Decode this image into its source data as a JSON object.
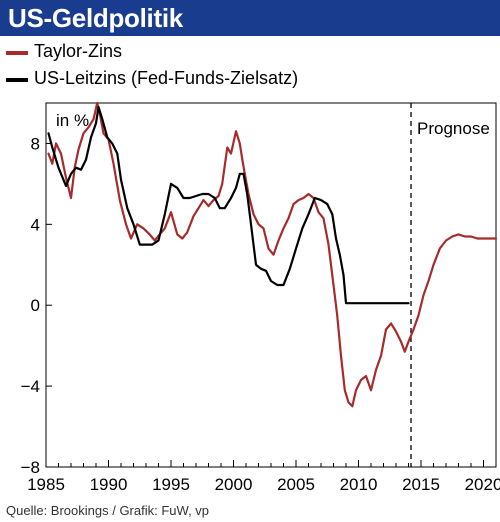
{
  "header": {
    "title": "US-Geldpolitik"
  },
  "legend": {
    "items": [
      {
        "label": "Taylor-Zins",
        "color": "#a82b2b"
      },
      {
        "label": "US-Leitzins (Fed-Funds-Zielsatz)",
        "color": "#000000"
      }
    ]
  },
  "source": "Quelle: Brookings / Grafik: FuW, vp",
  "chart_data": {
    "type": "line",
    "title": "US-Geldpolitik",
    "ylabel": "in %",
    "forecast_label": "Prognose",
    "forecast_start": 2014.2,
    "xlim": [
      1985,
      2021
    ],
    "ylim": [
      -8,
      10
    ],
    "x_ticks": [
      1985,
      1990,
      1995,
      2000,
      2005,
      2010,
      2015,
      2020
    ],
    "y_ticks": [
      8,
      4,
      0,
      -4,
      -8
    ],
    "y_tick_labels": [
      "8",
      "4",
      "0",
      "−4",
      "−8"
    ],
    "grid": false,
    "series": [
      {
        "name": "Taylor-Zins",
        "color": "#a82b2b",
        "x": [
          1985.2,
          1985.5,
          1985.8,
          1986.2,
          1986.6,
          1987.0,
          1987.3,
          1987.6,
          1988.0,
          1988.4,
          1988.8,
          1989.1,
          1989.3,
          1989.6,
          1990.0,
          1990.4,
          1990.9,
          1991.4,
          1991.8,
          1992.3,
          1992.8,
          1993.3,
          1993.7,
          1994.1,
          1994.5,
          1995.0,
          1995.5,
          1995.9,
          1996.3,
          1996.8,
          1997.2,
          1997.6,
          1998.0,
          1998.4,
          1998.8,
          1999.1,
          1999.5,
          1999.8,
          2000.2,
          2000.5,
          2000.7,
          2000.9,
          2001.2,
          2001.6,
          2002.0,
          2002.4,
          2002.8,
          2003.2,
          2003.6,
          2004.0,
          2004.4,
          2004.8,
          2005.2,
          2005.6,
          2006.0,
          2006.4,
          2006.8,
          2007.2,
          2007.6,
          2008.0,
          2008.3,
          2008.6,
          2008.9,
          2009.2,
          2009.5,
          2009.8,
          2010.2,
          2010.6,
          2011.0,
          2011.4,
          2011.8,
          2012.2,
          2012.6,
          2013.0,
          2013.4,
          2013.7,
          2014.0,
          2014.4,
          2014.8,
          2015.2,
          2015.6,
          2016.0,
          2016.5,
          2017.0,
          2017.5,
          2018.0,
          2018.5,
          2019.0,
          2019.5,
          2020.0,
          2020.5,
          2021.0
        ],
        "values": [
          7.5,
          7.0,
          8.0,
          7.5,
          6.3,
          5.3,
          6.8,
          7.7,
          8.5,
          8.8,
          9.2,
          10.0,
          9.5,
          8.5,
          8.2,
          7.0,
          5.2,
          4.0,
          3.3,
          4.0,
          3.8,
          3.5,
          3.2,
          3.5,
          3.8,
          4.6,
          3.5,
          3.3,
          3.6,
          4.4,
          4.8,
          5.2,
          4.9,
          5.2,
          5.4,
          6.0,
          7.8,
          7.5,
          8.6,
          8.0,
          7.2,
          6.5,
          5.5,
          4.5,
          4.0,
          3.8,
          2.8,
          2.5,
          3.2,
          3.8,
          4.3,
          5.0,
          5.2,
          5.3,
          5.5,
          5.3,
          4.6,
          4.3,
          3.0,
          1.0,
          -0.5,
          -2.5,
          -4.2,
          -4.8,
          -5.0,
          -4.2,
          -3.7,
          -3.5,
          -4.2,
          -3.2,
          -2.5,
          -1.2,
          -0.9,
          -1.3,
          -1.8,
          -2.3,
          -1.8,
          -1.2,
          -0.5,
          0.5,
          1.2,
          2.0,
          2.8,
          3.2,
          3.4,
          3.5,
          3.4,
          3.4,
          3.3,
          3.3,
          3.3,
          3.3
        ]
      },
      {
        "name": "US-Leitzins (Fed-Funds-Zielsatz)",
        "color": "#000000",
        "x": [
          1985.2,
          1985.5,
          1986.0,
          1986.6,
          1987.0,
          1987.4,
          1987.8,
          1988.2,
          1988.6,
          1989.0,
          1989.2,
          1989.5,
          1989.9,
          1990.3,
          1990.7,
          1991.0,
          1991.5,
          1992.0,
          1992.5,
          1993.0,
          1993.5,
          1994.0,
          1994.5,
          1995.0,
          1995.5,
          1996.0,
          1996.5,
          1997.0,
          1997.5,
          1998.0,
          1998.5,
          1998.9,
          1999.3,
          1999.8,
          2000.2,
          2000.5,
          2000.8,
          2001.1,
          2001.4,
          2001.8,
          2002.2,
          2002.6,
          2003.0,
          2003.5,
          2004.0,
          2004.5,
          2005.0,
          2005.5,
          2006.0,
          2006.5,
          2007.0,
          2007.5,
          2007.9,
          2008.2,
          2008.5,
          2008.8,
          2009.0,
          2010.0,
          2011.0,
          2012.0,
          2013.0,
          2014.0
        ],
        "values": [
          8.5,
          7.8,
          6.8,
          5.9,
          6.5,
          6.8,
          6.7,
          7.2,
          8.3,
          9.0,
          9.8,
          9.2,
          8.3,
          8.0,
          7.5,
          6.2,
          4.8,
          4.0,
          3.0,
          3.0,
          3.0,
          3.2,
          4.5,
          6.0,
          5.8,
          5.3,
          5.3,
          5.4,
          5.5,
          5.5,
          5.3,
          4.8,
          4.8,
          5.3,
          5.8,
          6.5,
          6.5,
          5.5,
          4.0,
          2.0,
          1.8,
          1.7,
          1.2,
          1.0,
          1.0,
          1.8,
          2.8,
          3.8,
          4.5,
          5.3,
          5.2,
          5.0,
          4.5,
          3.3,
          2.5,
          1.5,
          0.1,
          0.1,
          0.1,
          0.1,
          0.1,
          0.1
        ]
      }
    ]
  }
}
